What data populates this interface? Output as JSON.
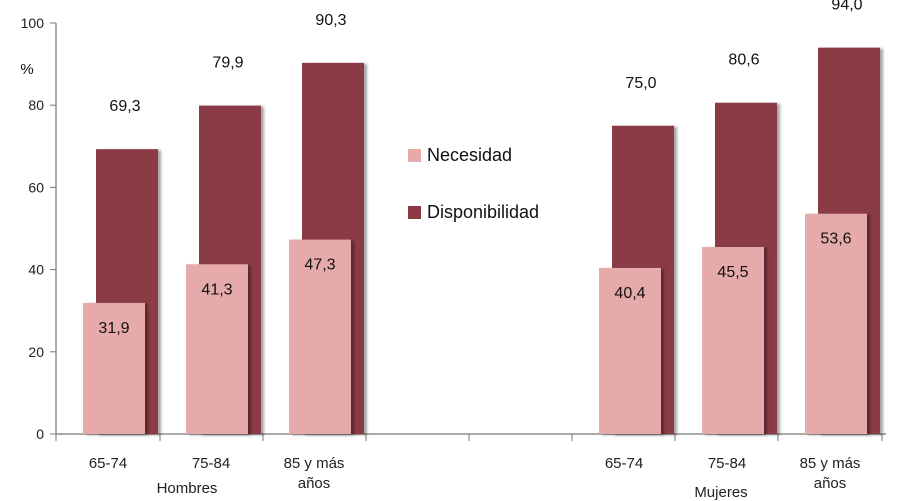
{
  "chart_data": {
    "type": "bar",
    "ylabel": "%",
    "ylim": [
      0,
      100
    ],
    "yticks": [
      "0",
      "20",
      "40",
      "60",
      "80",
      "100"
    ],
    "groups": [
      {
        "label": "Hombres",
        "categories": [
          "65-74",
          "75-84",
          "85 y más años"
        ],
        "necesidad": [
          31.9,
          41.3,
          47.3
        ],
        "disponibilidad": [
          69.3,
          79.9,
          90.3
        ]
      },
      {
        "label": "Mujeres",
        "categories": [
          "65-74",
          "75-84",
          "85 y más años"
        ],
        "necesidad": [
          40.4,
          45.5,
          53.6
        ],
        "disponibilidad": [
          75.0,
          80.6,
          94.0
        ]
      }
    ],
    "series": [
      {
        "name": "Necesidad",
        "color": "#e6aaaa"
      },
      {
        "name": "Disponibilidad",
        "color": "#8b3a44"
      }
    ],
    "value_labels": {
      "necesidad": [
        "31,9",
        "41,3",
        "47,3",
        "40,4",
        "45,5",
        "53,6"
      ],
      "disponibilidad": [
        "69,3",
        "79,9",
        "90,3",
        "75,0",
        "80,6",
        "94,0"
      ]
    },
    "legend_position": "center"
  }
}
